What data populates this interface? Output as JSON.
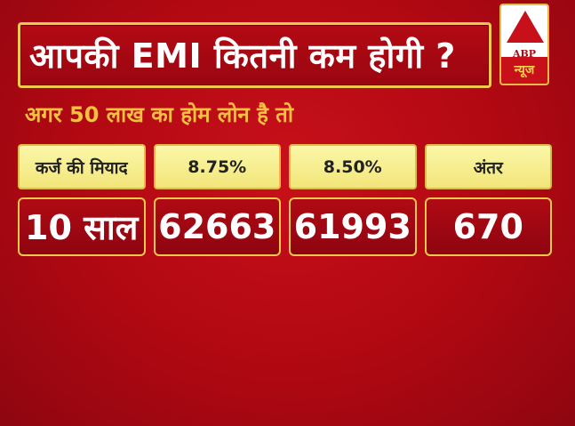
{
  "title": "आपकी EMI कितनी कम होगी ?",
  "logo": {
    "brand": "ABP",
    "subbrand": "न्यूज"
  },
  "subtitle": "अगर 50 लाख का होम लोन है तो",
  "table": {
    "headers": [
      "कर्ज की मियाद",
      "8.75%",
      "8.50%",
      "अंतर"
    ],
    "values": [
      "10 साल",
      "62663",
      "61993",
      "670"
    ]
  },
  "colors": {
    "background": "#b00812",
    "accent": "#f2c94c",
    "header_fill": "#f8f09a",
    "subtitle": "#f5c040"
  }
}
